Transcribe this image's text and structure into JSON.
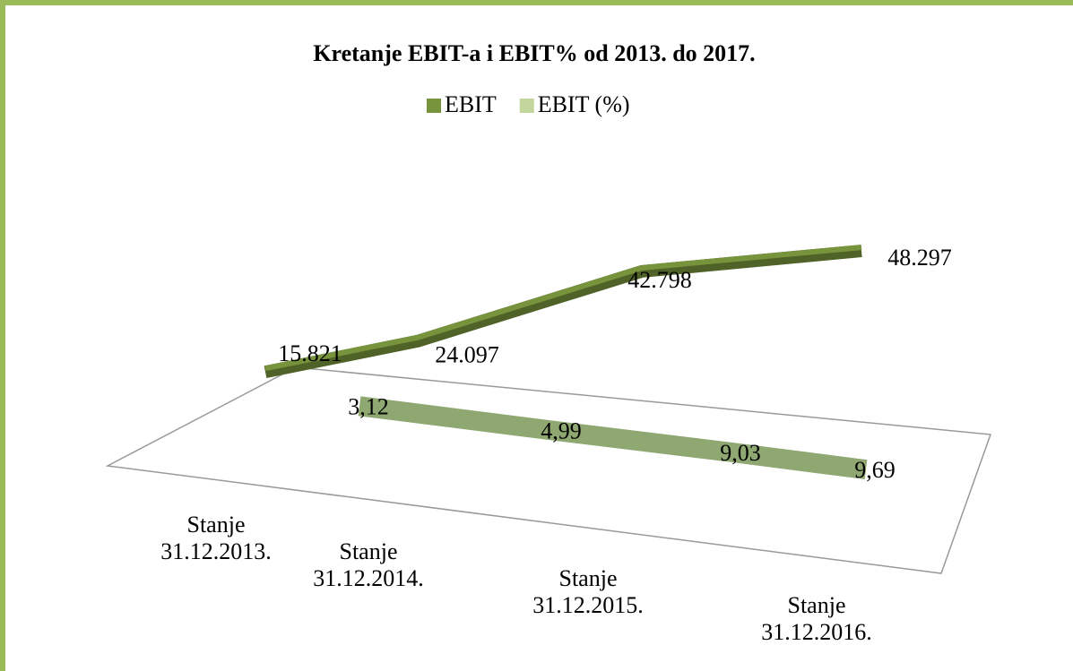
{
  "chart_data": {
    "type": "line3d",
    "title": "Kretanje EBIT-a i EBIT% od 2013. do 2017.",
    "categories": [
      "Stanje 31.12.2013.",
      "Stanje 31.12.2014.",
      "Stanje 31.12.2015.",
      "Stanje 31.12.2016."
    ],
    "series": [
      {
        "name": "EBIT",
        "color": "#6b8a35",
        "values": [
          15821,
          24097,
          42798,
          48297
        ],
        "value_labels": [
          "15.821",
          "24.097",
          "42.798",
          "48.297"
        ]
      },
      {
        "name": "EBIT (%)",
        "color": "#8fa872",
        "values": [
          3.12,
          4.99,
          9.03,
          9.69
        ],
        "value_labels": [
          "3,12",
          "4,99",
          "9,03",
          "9,69"
        ]
      }
    ],
    "legend": "top"
  }
}
